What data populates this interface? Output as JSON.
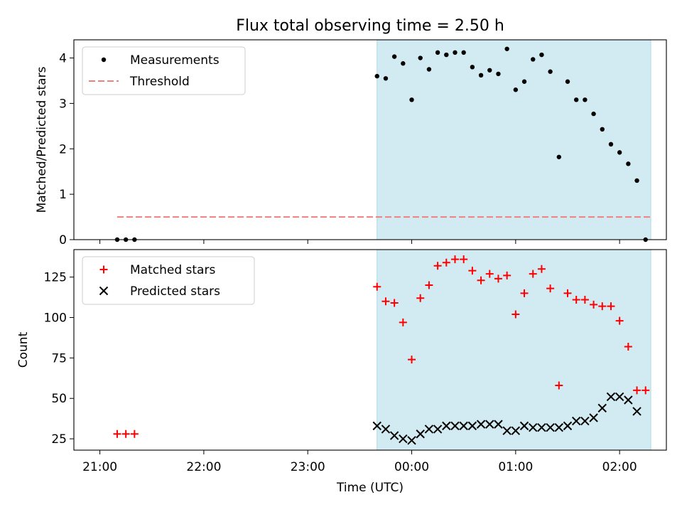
{
  "title": "Flux total observing time = 2.50 h",
  "xlabel": "Time (UTC)",
  "x_ticks": [
    "21:00",
    "22:00",
    "23:00",
    "00:00",
    "01:00",
    "02:00"
  ],
  "colors": {
    "shade": "#add8e6",
    "threshold": "#f08080",
    "matched": "#ff0000",
    "predicted": "#000000",
    "measurement": "#000000"
  },
  "chart_data": [
    {
      "type": "scatter",
      "ylabel": "Matched/Predicted stars",
      "ylim": [
        0,
        4.4
      ],
      "yticks": [
        0,
        1,
        2,
        3,
        4
      ],
      "x_range_hours": [
        -3.25,
        2.45
      ],
      "shaded_interval": [
        "23:40",
        "02:18"
      ],
      "legend": [
        "Measurements",
        "Threshold"
      ],
      "legend_position": "upper-left",
      "threshold": {
        "name": "Threshold",
        "value": 0.5,
        "x_start": "21:10",
        "x_end": "02:18",
        "style": "dashed"
      },
      "series": [
        {
          "name": "Measurements",
          "marker": "dot",
          "x": [
            "21:10",
            "21:15",
            "21:20",
            "23:40",
            "23:45",
            "23:50",
            "23:55",
            "00:00",
            "00:05",
            "00:10",
            "00:15",
            "00:20",
            "00:25",
            "00:30",
            "00:35",
            "00:40",
            "00:45",
            "00:50",
            "00:55",
            "01:00",
            "01:05",
            "01:10",
            "01:15",
            "01:20",
            "01:25",
            "01:30",
            "01:35",
            "01:40",
            "01:45",
            "01:50",
            "01:55",
            "02:00",
            "02:05",
            "02:10",
            "02:15"
          ],
          "y": [
            0,
            0,
            0,
            3.6,
            3.55,
            4.03,
            3.88,
            3.08,
            4.0,
            3.75,
            4.12,
            4.07,
            4.12,
            4.12,
            3.8,
            3.62,
            3.73,
            3.65,
            4.2,
            3.3,
            3.48,
            3.97,
            4.07,
            3.7,
            1.82,
            3.48,
            3.08,
            3.08,
            2.77,
            2.43,
            2.1,
            1.92,
            1.67,
            1.3,
            0
          ]
        }
      ]
    },
    {
      "type": "scatter",
      "ylabel": "Count",
      "ylim": [
        18,
        142
      ],
      "yticks": [
        25,
        50,
        75,
        100,
        125
      ],
      "x_range_hours": [
        -3.25,
        2.45
      ],
      "shaded_interval": [
        "23:40",
        "02:18"
      ],
      "legend": [
        "Matched stars",
        "Predicted stars"
      ],
      "legend_position": "upper-left",
      "series": [
        {
          "name": "Matched stars",
          "marker": "plus",
          "x": [
            "21:10",
            "21:15",
            "21:20",
            "23:40",
            "23:45",
            "23:50",
            "23:55",
            "00:00",
            "00:05",
            "00:10",
            "00:15",
            "00:20",
            "00:25",
            "00:30",
            "00:35",
            "00:40",
            "00:45",
            "00:50",
            "00:55",
            "01:00",
            "01:05",
            "01:10",
            "01:15",
            "01:20",
            "01:25",
            "01:30",
            "01:35",
            "01:40",
            "01:45",
            "01:50",
            "01:55",
            "02:00",
            "02:05",
            "02:10",
            "02:15"
          ],
          "y": [
            28,
            28,
            28,
            119,
            110,
            109,
            97,
            74,
            112,
            120,
            132,
            134,
            136,
            136,
            129,
            123,
            127,
            124,
            126,
            102,
            115,
            127,
            130,
            118,
            58,
            115,
            111,
            111,
            108,
            107,
            107,
            98,
            82,
            55,
            55
          ]
        },
        {
          "name": "Predicted stars",
          "marker": "x",
          "x": [
            "23:40",
            "23:45",
            "23:50",
            "23:55",
            "00:00",
            "00:05",
            "00:10",
            "00:15",
            "00:20",
            "00:25",
            "00:30",
            "00:35",
            "00:40",
            "00:45",
            "00:50",
            "00:55",
            "01:00",
            "01:05",
            "01:10",
            "01:15",
            "01:20",
            "01:25",
            "01:30",
            "01:35",
            "01:40",
            "01:45",
            "01:50",
            "01:55",
            "02:00",
            "02:05",
            "02:10"
          ],
          "y": [
            33,
            31,
            27,
            25,
            24,
            28,
            31,
            31,
            33,
            33,
            33,
            33,
            34,
            34,
            34,
            30,
            30,
            33,
            32,
            32,
            32,
            32,
            33,
            36,
            36,
            38,
            44,
            51,
            51,
            49,
            42
          ]
        }
      ]
    }
  ]
}
